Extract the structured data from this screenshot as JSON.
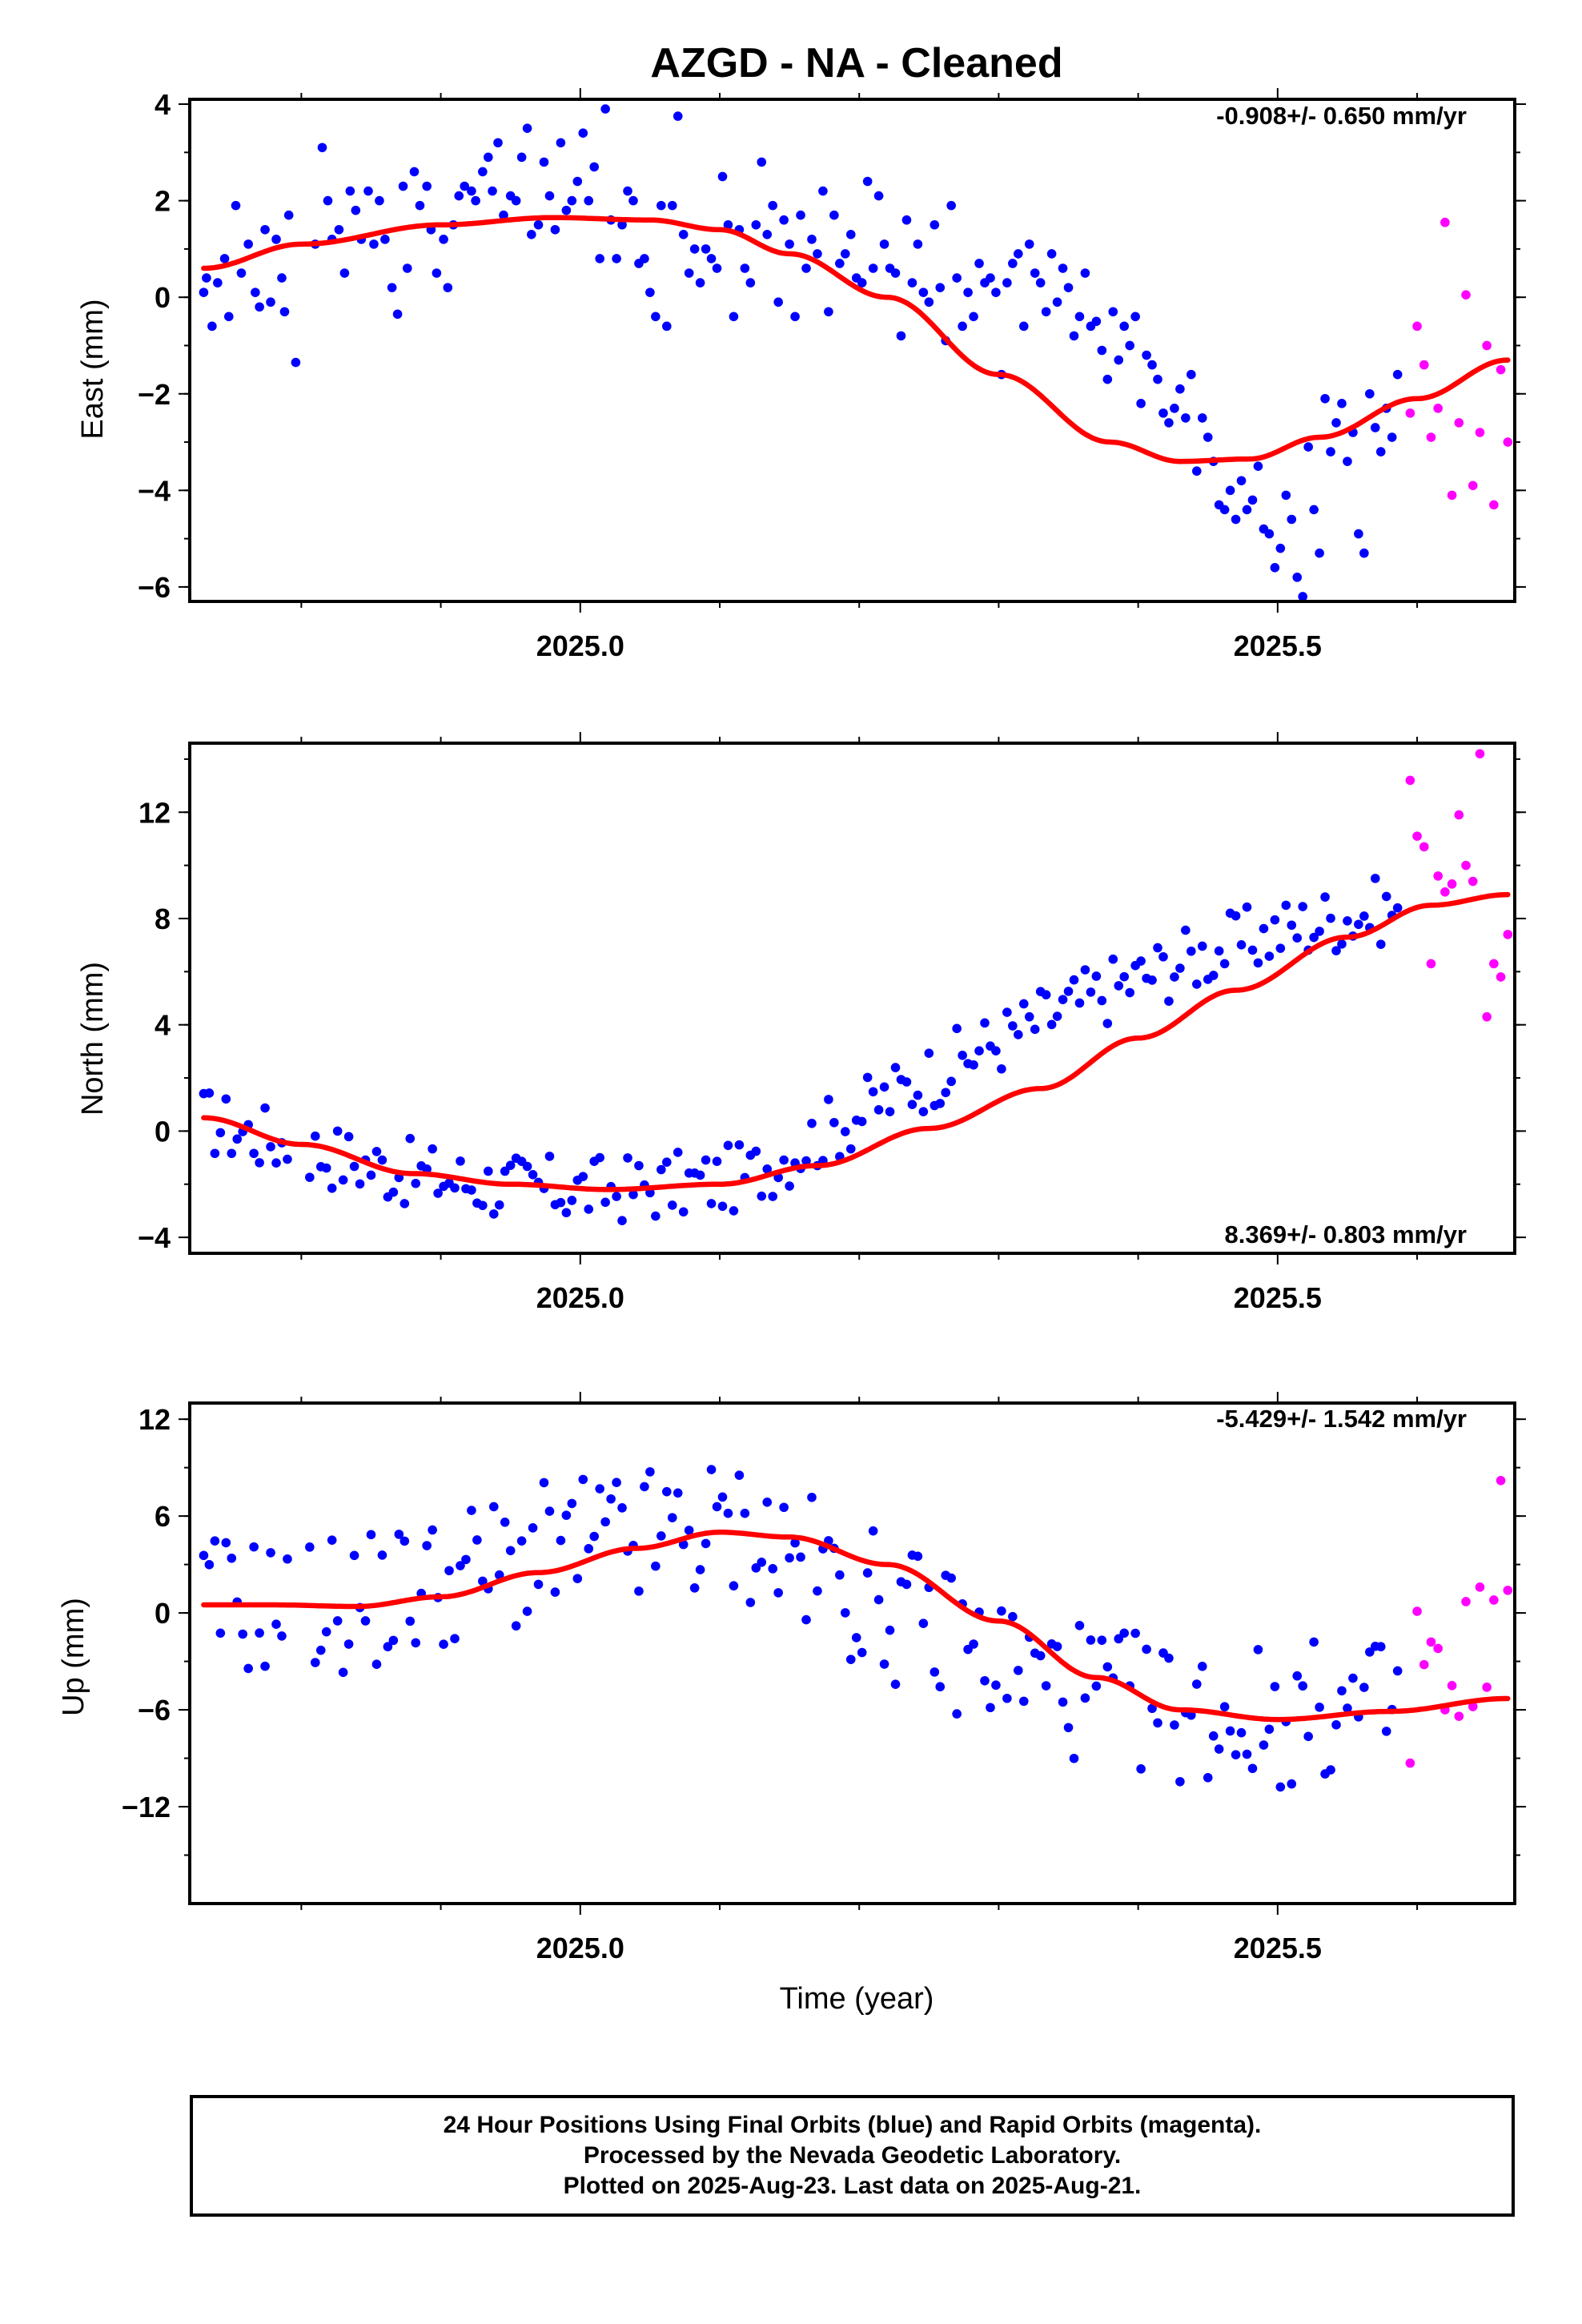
{
  "title": "AZGD  - NA - Cleaned",
  "xlabel": "Time (year)",
  "footer": {
    "line1": "24 Hour Positions Using Final Orbits (blue) and Rapid Orbits (magenta).",
    "line2": "Processed by the Nevada Geodetic Laboratory.",
    "line3": "Plotted on 2025-Aug-23. Last data on 2025-Aug-21."
  },
  "colors": {
    "final": "#0000ff",
    "rapid": "#ff00ff",
    "fit": "#ff0000",
    "axes": "#000000"
  },
  "chart_data": [
    {
      "type": "scatter",
      "ylabel": "East (mm)",
      "rate": "-0.908+/- 0.650 mm/yr",
      "xlim": [
        2024.72,
        2025.67
      ],
      "ylim": [
        -6.3,
        4.1
      ],
      "xticks": [
        2025.0,
        2025.5
      ],
      "yticks": [
        -6,
        -4,
        -2,
        0,
        2,
        4
      ],
      "final": {
        "x": [
          2024.73,
          2024.732,
          2024.736,
          2024.74,
          2024.745,
          2024.748,
          2024.753,
          2024.757,
          2024.762,
          2024.767,
          2024.77,
          2024.774,
          2024.778,
          2024.782,
          2024.786,
          2024.788,
          2024.791,
          2024.796,
          2024.81,
          2024.815,
          2024.819,
          2024.822,
          2024.827,
          2024.831,
          2024.835,
          2024.839,
          2024.843,
          2024.848,
          2024.852,
          2024.856,
          2024.86,
          2024.865,
          2024.869,
          2024.873,
          2024.876,
          2024.881,
          2024.885,
          2024.89,
          2024.893,
          2024.897,
          2024.902,
          2024.905,
          2024.909,
          2024.913,
          2024.917,
          2024.922,
          2024.925,
          2024.93,
          2024.934,
          2024.937,
          2024.941,
          2024.945,
          2024.95,
          2024.954,
          2024.958,
          2024.962,
          2024.965,
          2024.97,
          2024.974,
          2024.978,
          2024.982,
          2024.986,
          2024.99,
          2024.994,
          2024.998,
          2025.002,
          2025.006,
          2025.01,
          2025.014,
          2025.018,
          2025.022,
          2025.026,
          2025.03,
          2025.034,
          2025.038,
          2025.042,
          2025.046,
          2025.05,
          2025.054,
          2025.058,
          2025.062,
          2025.066,
          2025.07,
          2025.074,
          2025.078,
          2025.082,
          2025.086,
          2025.09,
          2025.094,
          2025.098,
          2025.102,
          2025.106,
          2025.11,
          2025.114,
          2025.118,
          2025.122,
          2025.126,
          2025.13,
          2025.134,
          2025.138,
          2025.142,
          2025.146,
          2025.15,
          2025.154,
          2025.158,
          2025.162,
          2025.166,
          2025.17,
          2025.174,
          2025.178,
          2025.182,
          2025.186,
          2025.19,
          2025.194,
          2025.198,
          2025.202,
          2025.206,
          2025.21,
          2025.214,
          2025.218,
          2025.222,
          2025.226,
          2025.23,
          2025.234,
          2025.238,
          2025.242,
          2025.246,
          2025.25,
          2025.254,
          2025.258,
          2025.262,
          2025.266,
          2025.27,
          2025.274,
          2025.278,
          2025.282,
          2025.286,
          2025.29,
          2025.294,
          2025.298,
          2025.302,
          2025.306,
          2025.31,
          2025.314,
          2025.318,
          2025.322,
          2025.326,
          2025.33,
          2025.334,
          2025.338,
          2025.342,
          2025.346,
          2025.35,
          2025.354,
          2025.358,
          2025.362,
          2025.366,
          2025.37,
          2025.374,
          2025.378,
          2025.382,
          2025.386,
          2025.39,
          2025.394,
          2025.398,
          2025.402,
          2025.406,
          2025.41,
          2025.414,
          2025.418,
          2025.422,
          2025.426,
          2025.43,
          2025.434,
          2025.438,
          2025.442,
          2025.446,
          2025.45,
          2025.454,
          2025.458,
          2025.462,
          2025.466,
          2025.47,
          2025.474,
          2025.478,
          2025.482,
          2025.486,
          2025.49,
          2025.494,
          2025.498,
          2025.502,
          2025.506,
          2025.51,
          2025.514,
          2025.518,
          2025.522,
          2025.526,
          2025.53,
          2025.534,
          2025.538,
          2025.542,
          2025.546,
          2025.55,
          2025.554,
          2025.558,
          2025.562,
          2025.566,
          2025.57,
          2025.574,
          2025.578,
          2025.582,
          2025.586
        ],
        "y": [
          0.1,
          0.4,
          -0.6,
          0.3,
          0.8,
          -0.4,
          1.9,
          0.5,
          1.1,
          0.1,
          -0.2,
          1.4,
          -0.1,
          1.2,
          0.4,
          -0.3,
          1.7,
          -1.35,
          1.1,
          3.1,
          2.0,
          1.2,
          1.4,
          0.5,
          2.2,
          1.8,
          1.2,
          2.2,
          1.1,
          2.0,
          1.2,
          0.2,
          -0.35,
          2.3,
          0.6,
          2.6,
          1.9,
          2.3,
          1.4,
          0.5,
          1.2,
          0.2,
          1.5,
          2.1,
          2.3,
          2.2,
          2.0,
          2.6,
          2.9,
          2.2,
          3.2,
          1.7,
          2.1,
          2.0,
          2.9,
          3.5,
          1.3,
          1.5,
          2.8,
          2.1,
          1.4,
          3.2,
          1.8,
          2.0,
          2.4,
          3.4,
          2.0,
          2.7,
          0.8,
          3.9,
          1.6,
          0.8,
          1.5,
          2.2,
          2.0,
          0.7,
          0.8,
          0.1,
          -0.4,
          1.9,
          -0.6,
          1.9,
          3.75,
          1.3,
          0.5,
          1.0,
          0.3,
          1.0,
          0.8,
          0.6,
          2.5,
          1.5,
          -0.4,
          1.4,
          0.6,
          0.3,
          1.5,
          2.8,
          1.3,
          1.9,
          -0.1,
          1.6,
          1.1,
          -0.4,
          1.7,
          0.6,
          1.2,
          0.9,
          2.2,
          -0.3,
          1.7,
          0.7,
          0.9,
          1.3,
          0.4,
          0.3,
          2.4,
          0.6,
          2.1,
          1.1,
          0.6,
          0.5,
          -0.8,
          1.6,
          0.3,
          1.1,
          0.1,
          -0.1,
          1.5,
          0.2,
          -0.9,
          1.9,
          0.4,
          -0.6,
          0.1,
          -0.4,
          0.7,
          0.3,
          0.4,
          0.1,
          -1.6,
          0.3,
          0.7,
          0.9,
          -0.6,
          1.1,
          0.5,
          0.3,
          -0.3,
          0.9,
          -0.1,
          0.6,
          0.2,
          -0.8,
          -0.4,
          0.5,
          -0.6,
          -0.5,
          -1.1,
          -1.7,
          -0.3,
          -1.3,
          -0.6,
          -1.0,
          -0.4,
          -2.2,
          -1.2,
          -1.4,
          -1.7,
          -2.4,
          -2.6,
          -2.3,
          -1.9,
          -2.5,
          -1.6,
          -3.6,
          -2.5,
          -2.9,
          -3.4,
          -4.3,
          -4.4,
          -4.0,
          -4.6,
          -3.8,
          -4.4,
          -4.2,
          -3.5,
          -4.8,
          -4.9,
          -5.6,
          -5.2,
          -4.1,
          -4.6,
          -5.8,
          -6.2,
          -3.1,
          -4.4,
          -5.3,
          -2.1,
          -3.2,
          -2.6,
          -2.2,
          -3.4,
          -2.8,
          -4.9,
          -5.3,
          -2.0,
          -2.7,
          -3.2,
          -2.3,
          -2.9,
          -1.6
        ],
        "_note": ""
      },
      "rapid": {
        "x": [
          2025.595,
          2025.6,
          2025.605,
          2025.61,
          2025.615,
          2025.62,
          2025.625,
          2025.63,
          2025.635,
          2025.64,
          2025.645,
          2025.65,
          2025.655,
          2025.66,
          2025.665
        ],
        "y": [
          -2.4,
          -0.6,
          -1.4,
          -2.9,
          -2.3,
          1.55,
          -4.1,
          -2.6,
          0.05,
          -3.9,
          -2.8,
          -1.0,
          -4.3,
          -1.5,
          -3.0
        ]
      }
    },
    {
      "type": "scatter",
      "ylabel": "North (mm)",
      "rate": "8.369+/- 0.803 mm/yr",
      "xlim": [
        2024.72,
        2025.67
      ],
      "ylim": [
        -4.6,
        14.6
      ],
      "xticks": [
        2025.0,
        2025.5
      ],
      "yticks": [
        -4,
        0,
        4,
        8,
        12
      ],
      "final": {
        "x": [],
        "y": []
      },
      "rapid": {
        "x": [
          2025.595,
          2025.6,
          2025.605,
          2025.61,
          2025.615,
          2025.62,
          2025.625,
          2025.63,
          2025.635,
          2025.64,
          2025.645,
          2025.65,
          2025.655,
          2025.66,
          2025.665
        ],
        "y": [
          13.2,
          11.1,
          10.7,
          6.3,
          9.6,
          9.0,
          9.3,
          11.9,
          10.0,
          9.4,
          14.2,
          4.3,
          6.3,
          5.8,
          7.4
        ]
      }
    },
    {
      "type": "scatter",
      "ylabel": "Up (mm)",
      "rate": "-5.429+/- 1.542 mm/yr",
      "xlim": [
        2024.72,
        2025.67
      ],
      "ylim": [
        -18,
        13
      ],
      "xticks": [
        2025.0,
        2025.5
      ],
      "yticks": [
        -12,
        -6,
        0,
        6,
        12
      ],
      "final": {
        "x": [],
        "y": []
      },
      "rapid": {
        "x": [
          2025.595,
          2025.6,
          2025.605,
          2025.61,
          2025.615,
          2025.62,
          2025.625,
          2025.63,
          2025.635,
          2025.64,
          2025.645,
          2025.65,
          2025.655,
          2025.66,
          2025.665
        ],
        "y": [
          -9.3,
          0.1,
          -3.2,
          -1.8,
          -2.2,
          -6.0,
          -4.5,
          -6.4,
          0.7,
          -5.8,
          1.6,
          -4.6,
          0.8,
          8.2,
          1.4
        ]
      }
    }
  ]
}
